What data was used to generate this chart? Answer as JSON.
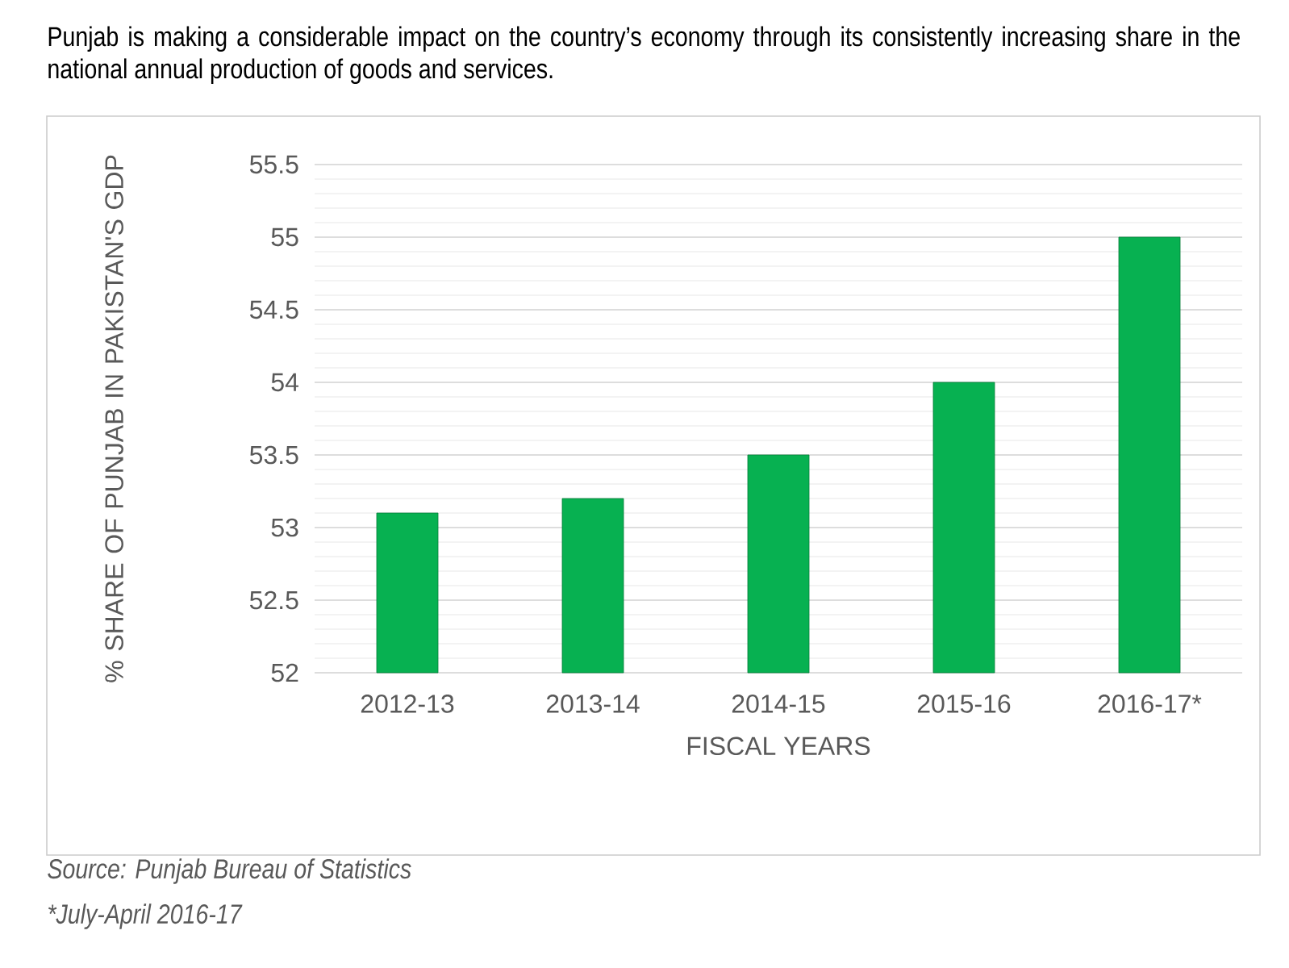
{
  "chart_data": {
    "type": "bar",
    "title": "Punjab is making a considerable impact on the country’s economy through its consistently increasing share in the national annual production of goods and services.",
    "xlabel": "FISCAL YEARS",
    "ylabel": "% SHARE OF PUNJAB IN PAKISTAN'S GDP",
    "categories": [
      "2012-13",
      "2013-14",
      "2014-15",
      "2015-16",
      "2016-17*"
    ],
    "values": [
      53.1,
      53.2,
      53.5,
      54,
      55
    ],
    "color": "#07b151",
    "ylim": [
      52,
      55.5
    ],
    "yticks": [
      52,
      52.5,
      53,
      53.5,
      54,
      54.5,
      55,
      55.5
    ],
    "grid": "y",
    "annotations": [
      "Source: Punjab Bureau of Statistics",
      "*July-April 2016-17"
    ]
  }
}
